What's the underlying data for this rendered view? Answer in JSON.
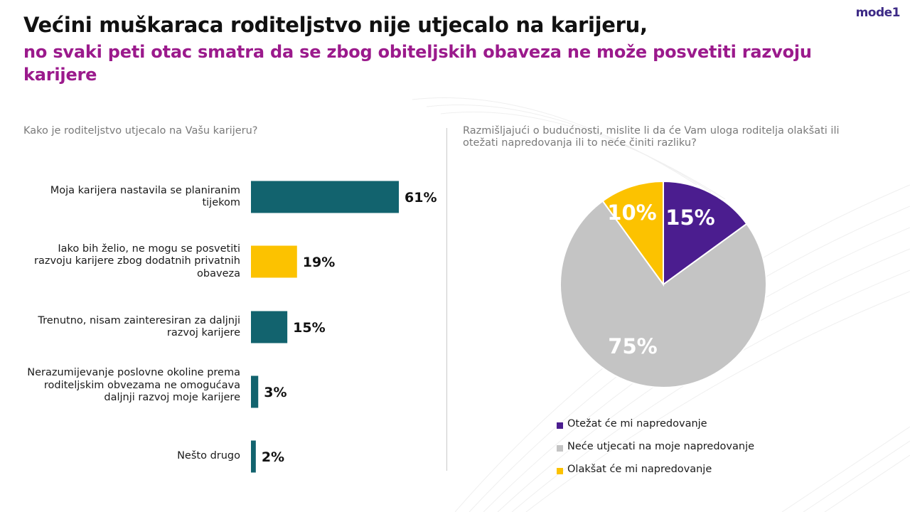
{
  "header": {
    "title": "Većini muškaraca roditeljstvo nije utjecalo na karijeru,",
    "subtitle": "no svaki peti otac smatra da se zbog obiteljskih obaveza ne može posvetiti razvoju karijere",
    "logo": "mode1",
    "colors": {
      "title": "#111111",
      "subtitle": "#9b1a8c",
      "logo": "#3d2a86"
    }
  },
  "chart_data": [
    {
      "type": "bar",
      "orientation": "horizontal",
      "title": "Kako je roditeljstvo utjecalo na Vašu karijeru?",
      "categories": [
        "Moja karijera nastavila se planiranim tijekom",
        "Iako bih želio, ne mogu se posvetiti razvoju karijere zbog dodatnih privatnih obaveza",
        "Trenutno, nisam zainteresiran za daljnji razvoj karijere",
        "Nerazumijevanje poslovne okoline prema roditeljskim obvezama ne omogućava daljnji razvoj moje karijere",
        "Nešto drugo"
      ],
      "values": [
        61,
        19,
        15,
        3,
        2
      ],
      "value_labels": [
        "61%",
        "19%",
        "15%",
        "3%",
        "2%"
      ],
      "colors": [
        "#12636e",
        "#fcc200",
        "#12636e",
        "#12636e",
        "#12636e"
      ],
      "unit": "%",
      "xlim": [
        0,
        100
      ],
      "grid": false
    },
    {
      "type": "pie",
      "title": "Razmišljajući o budućnosti, mislite li da će Vam uloga roditelja olakšati ili otežati napredovanja ili to neće činiti razliku?",
      "labels": [
        "Otežat će mi napredovanje",
        "Neće utjecati na moje napredovanje",
        "Olakšat će mi napredovanje"
      ],
      "values": [
        15,
        75,
        10
      ],
      "value_labels": [
        "15%",
        "75%",
        "10%"
      ],
      "colors": [
        "#4b1d8f",
        "#c4c4c4",
        "#fcc200"
      ],
      "unit": "%",
      "legend": "bottom"
    }
  ]
}
